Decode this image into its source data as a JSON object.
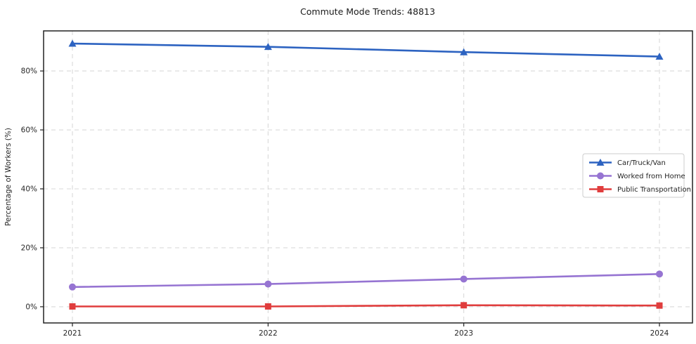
{
  "title": "Commute Mode Trends: 48813",
  "chart_data": {
    "type": "line",
    "title": "Commute Mode Trends: 48813",
    "xlabel": "",
    "ylabel": "Percentage of Workers (%)",
    "categories": [
      "2021",
      "2022",
      "2023",
      "2024"
    ],
    "series": [
      {
        "name": "Car/Truck/Van",
        "values": [
          89.3,
          88.2,
          86.4,
          84.9
        ],
        "color": "#2d63c1",
        "marker": "triangle"
      },
      {
        "name": "Worked from Home",
        "values": [
          6.7,
          7.7,
          9.4,
          11.1
        ],
        "color": "#9674d2",
        "marker": "circle"
      },
      {
        "name": "Public Transportation",
        "values": [
          0.1,
          0.1,
          0.5,
          0.4
        ],
        "color": "#e03d3d",
        "marker": "square"
      }
    ],
    "yticks": [
      0,
      20,
      40,
      60,
      80
    ],
    "ytick_labels": [
      "0%",
      "20%",
      "40%",
      "60%",
      "80%"
    ],
    "ylim": [
      -5.5,
      93.6
    ],
    "grid": true,
    "grid_style": "dashed",
    "legend_position": "center right",
    "colors": {
      "grid": "#d9d9d9",
      "frame": "#222222",
      "text": "#262626",
      "legend_border": "#cccccc",
      "background": "#ffffff"
    }
  }
}
